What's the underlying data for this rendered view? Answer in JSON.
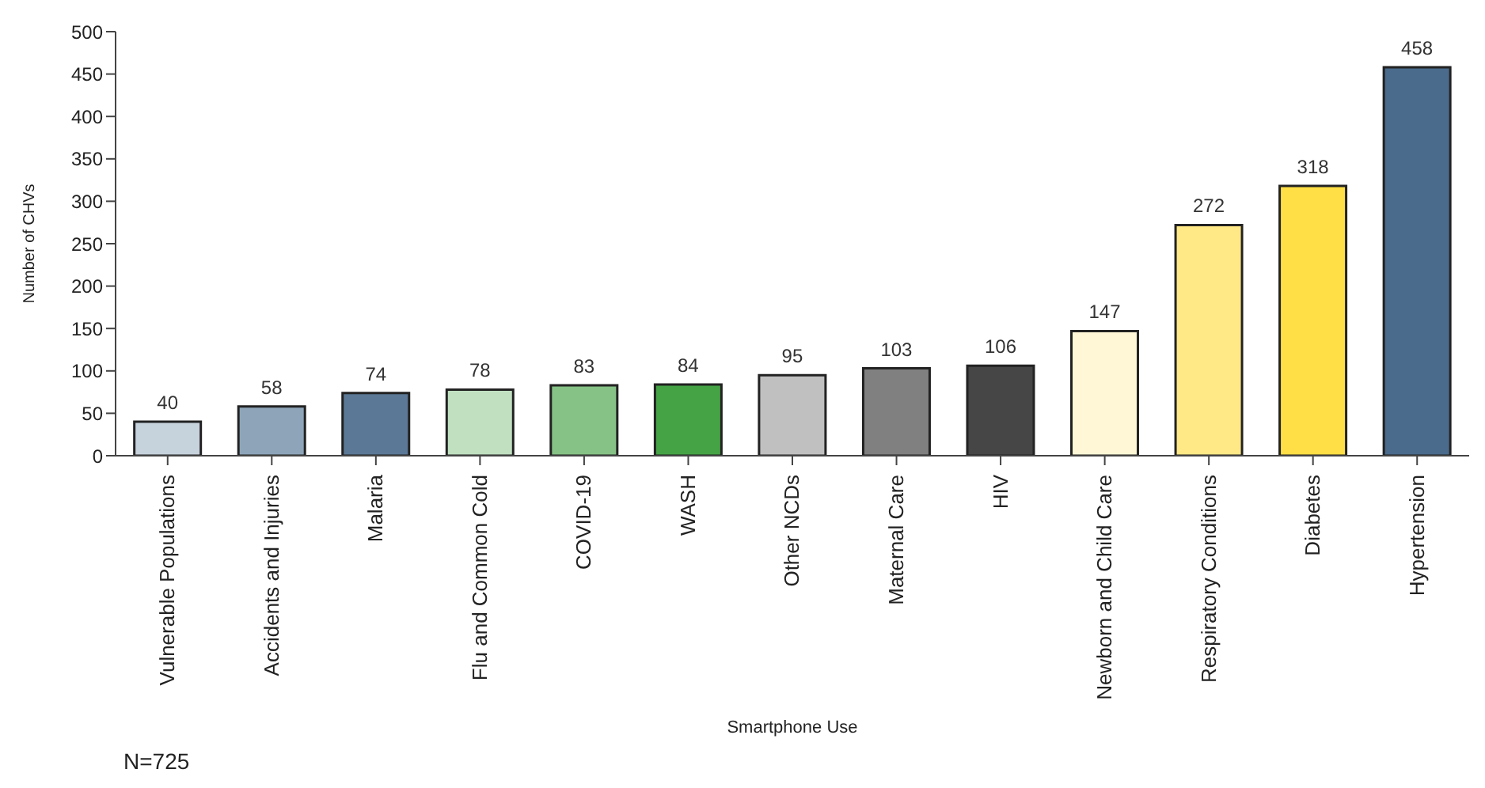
{
  "chart_data": {
    "type": "bar",
    "xlabel": "Smartphone Use",
    "ylabel": "Number of CHVs",
    "categories": [
      "Vulnerable Populations",
      "Accidents and Injuries",
      "Malaria",
      "Flu and Common Cold",
      "COVID-19",
      "WASH",
      "Other NCDs",
      "Maternal Care",
      "HIV",
      "Newborn and Child Care",
      "Respiratory Conditions",
      "Diabetes",
      "Hypertension"
    ],
    "values": [
      40,
      58,
      74,
      78,
      83,
      84,
      95,
      103,
      106,
      147,
      272,
      318,
      458
    ],
    "colors": [
      "#c6d2dc",
      "#8ea5b9",
      "#5b7896",
      "#c0e0c0",
      "#86c286",
      "#45a345",
      "#c0c0c0",
      "#808080",
      "#464646",
      "#fff7d6",
      "#ffe886",
      "#ffdf45",
      "#4a6b8c"
    ],
    "ylim": [
      0,
      500
    ],
    "yticks": [
      0,
      50,
      100,
      150,
      200,
      250,
      300,
      350,
      400,
      450,
      500
    ],
    "data_labels": true,
    "grid": false,
    "annotations": [
      "N=725"
    ]
  }
}
